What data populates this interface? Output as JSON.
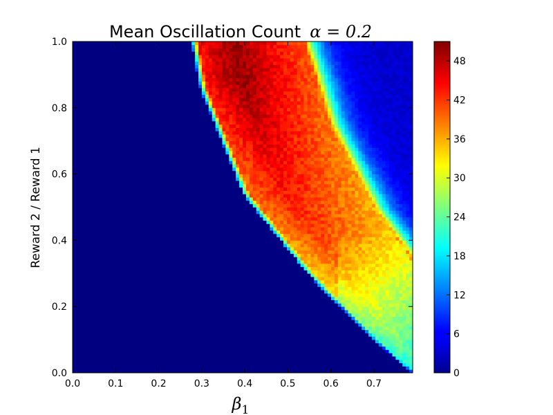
{
  "chart_data": {
    "type": "heatmap",
    "title": {
      "text": "Mean Oscillation Count",
      "math": "α = 0.2"
    },
    "xlabel": {
      "symbol": "β",
      "subscript": "1"
    },
    "ylabel": "Reward 2 / Reward 1",
    "xlim": [
      0.0,
      0.79
    ],
    "ylim": [
      0.0,
      1.0
    ],
    "x_ticks": [
      "0.0",
      "0.1",
      "0.2",
      "0.3",
      "0.4",
      "0.5",
      "0.6",
      "0.7"
    ],
    "y_ticks": [
      "0.0",
      "0.2",
      "0.4",
      "0.6",
      "0.8",
      "1.0"
    ],
    "colorbar": {
      "colormap": "jet",
      "range": [
        0,
        51
      ],
      "ticks": [
        "0",
        "6",
        "12",
        "18",
        "24",
        "30",
        "36",
        "42",
        "48"
      ]
    },
    "grid": false,
    "regions": {
      "lower_boundary": {
        "x": [
          0.28,
          0.3,
          0.4,
          0.55,
          0.7,
          0.79
        ],
        "y": [
          1.0,
          0.86,
          0.54,
          0.3,
          0.1,
          0.0
        ]
      },
      "band_upper_edge": {
        "x": [
          0.54,
          0.6,
          0.7,
          0.78
        ],
        "y": [
          1.0,
          0.75,
          0.5,
          0.36
        ]
      },
      "peak_value": 51,
      "peak_location": {
        "x": 0.38,
        "y": 0.92
      }
    }
  }
}
